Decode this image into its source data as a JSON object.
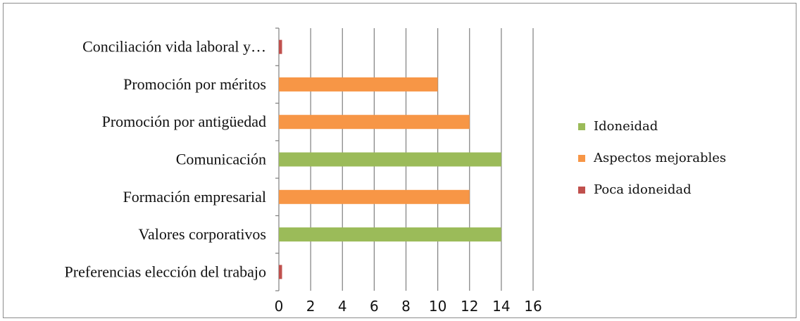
{
  "chart_data": {
    "type": "bar",
    "orientation": "horizontal",
    "categories": [
      "Conciliación vida laboral y…",
      "Promoción por méritos",
      "Promoción por antigüedad",
      "Comunicación",
      "Formación empresarial",
      "Valores corporativos",
      "Preferencias elección del trabajo"
    ],
    "values": [
      0.2,
      10,
      12,
      14,
      12,
      14,
      0.2
    ],
    "bar_series": [
      "Poca idoneidad",
      "Aspectos mejorables",
      "Aspectos mejorables",
      "Idoneidad",
      "Aspectos mejorables",
      "Idoneidad",
      "Poca idoneidad"
    ],
    "legend": [
      {
        "name": "Idoneidad",
        "color": "#9bbb59"
      },
      {
        "name": "Aspectos mejorables",
        "color": "#f79646"
      },
      {
        "name": "Poca idoneidad",
        "color": "#c0504d"
      }
    ],
    "legend_position": "right",
    "xlim": [
      0,
      16
    ],
    "xticks": [
      "0",
      "2",
      "4",
      "6",
      "8",
      "10",
      "12",
      "14",
      "16"
    ],
    "grid": "vertical",
    "title": "",
    "xlabel": "",
    "ylabel": ""
  }
}
